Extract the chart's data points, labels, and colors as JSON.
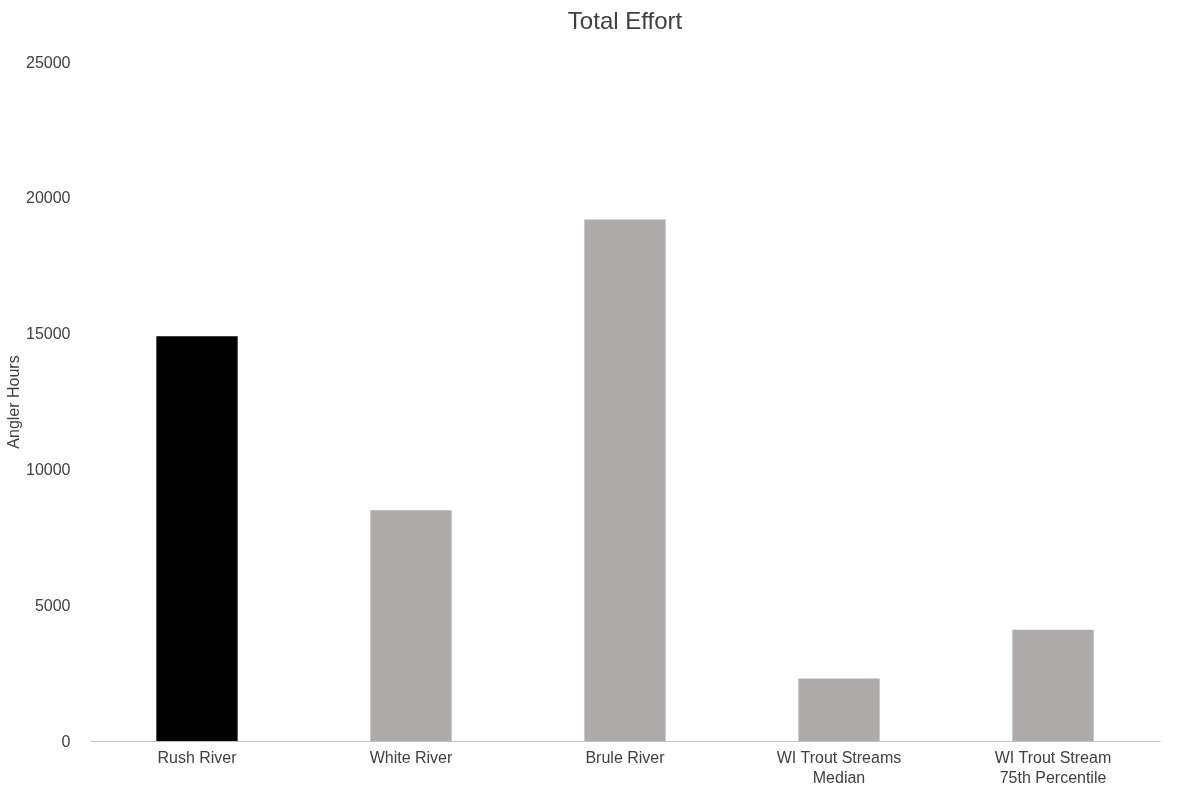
{
  "chart_data": {
    "type": "bar",
    "title": "Total Effort",
    "ylabel": "Angler Hours",
    "categories": [
      "Rush River",
      "White River",
      "Brule River",
      "WI Trout Streams\nMedian",
      "WI Trout Stream\n75th Percentile"
    ],
    "values": [
      14900,
      8500,
      19200,
      2300,
      4100
    ],
    "colors": [
      "#000000",
      "#afabab",
      "#afabab",
      "#afabab",
      "#afabab"
    ],
    "ylim": [
      0,
      25000
    ],
    "yticks": [
      0,
      5000,
      10000,
      15000,
      20000,
      25000
    ],
    "grid": false
  }
}
